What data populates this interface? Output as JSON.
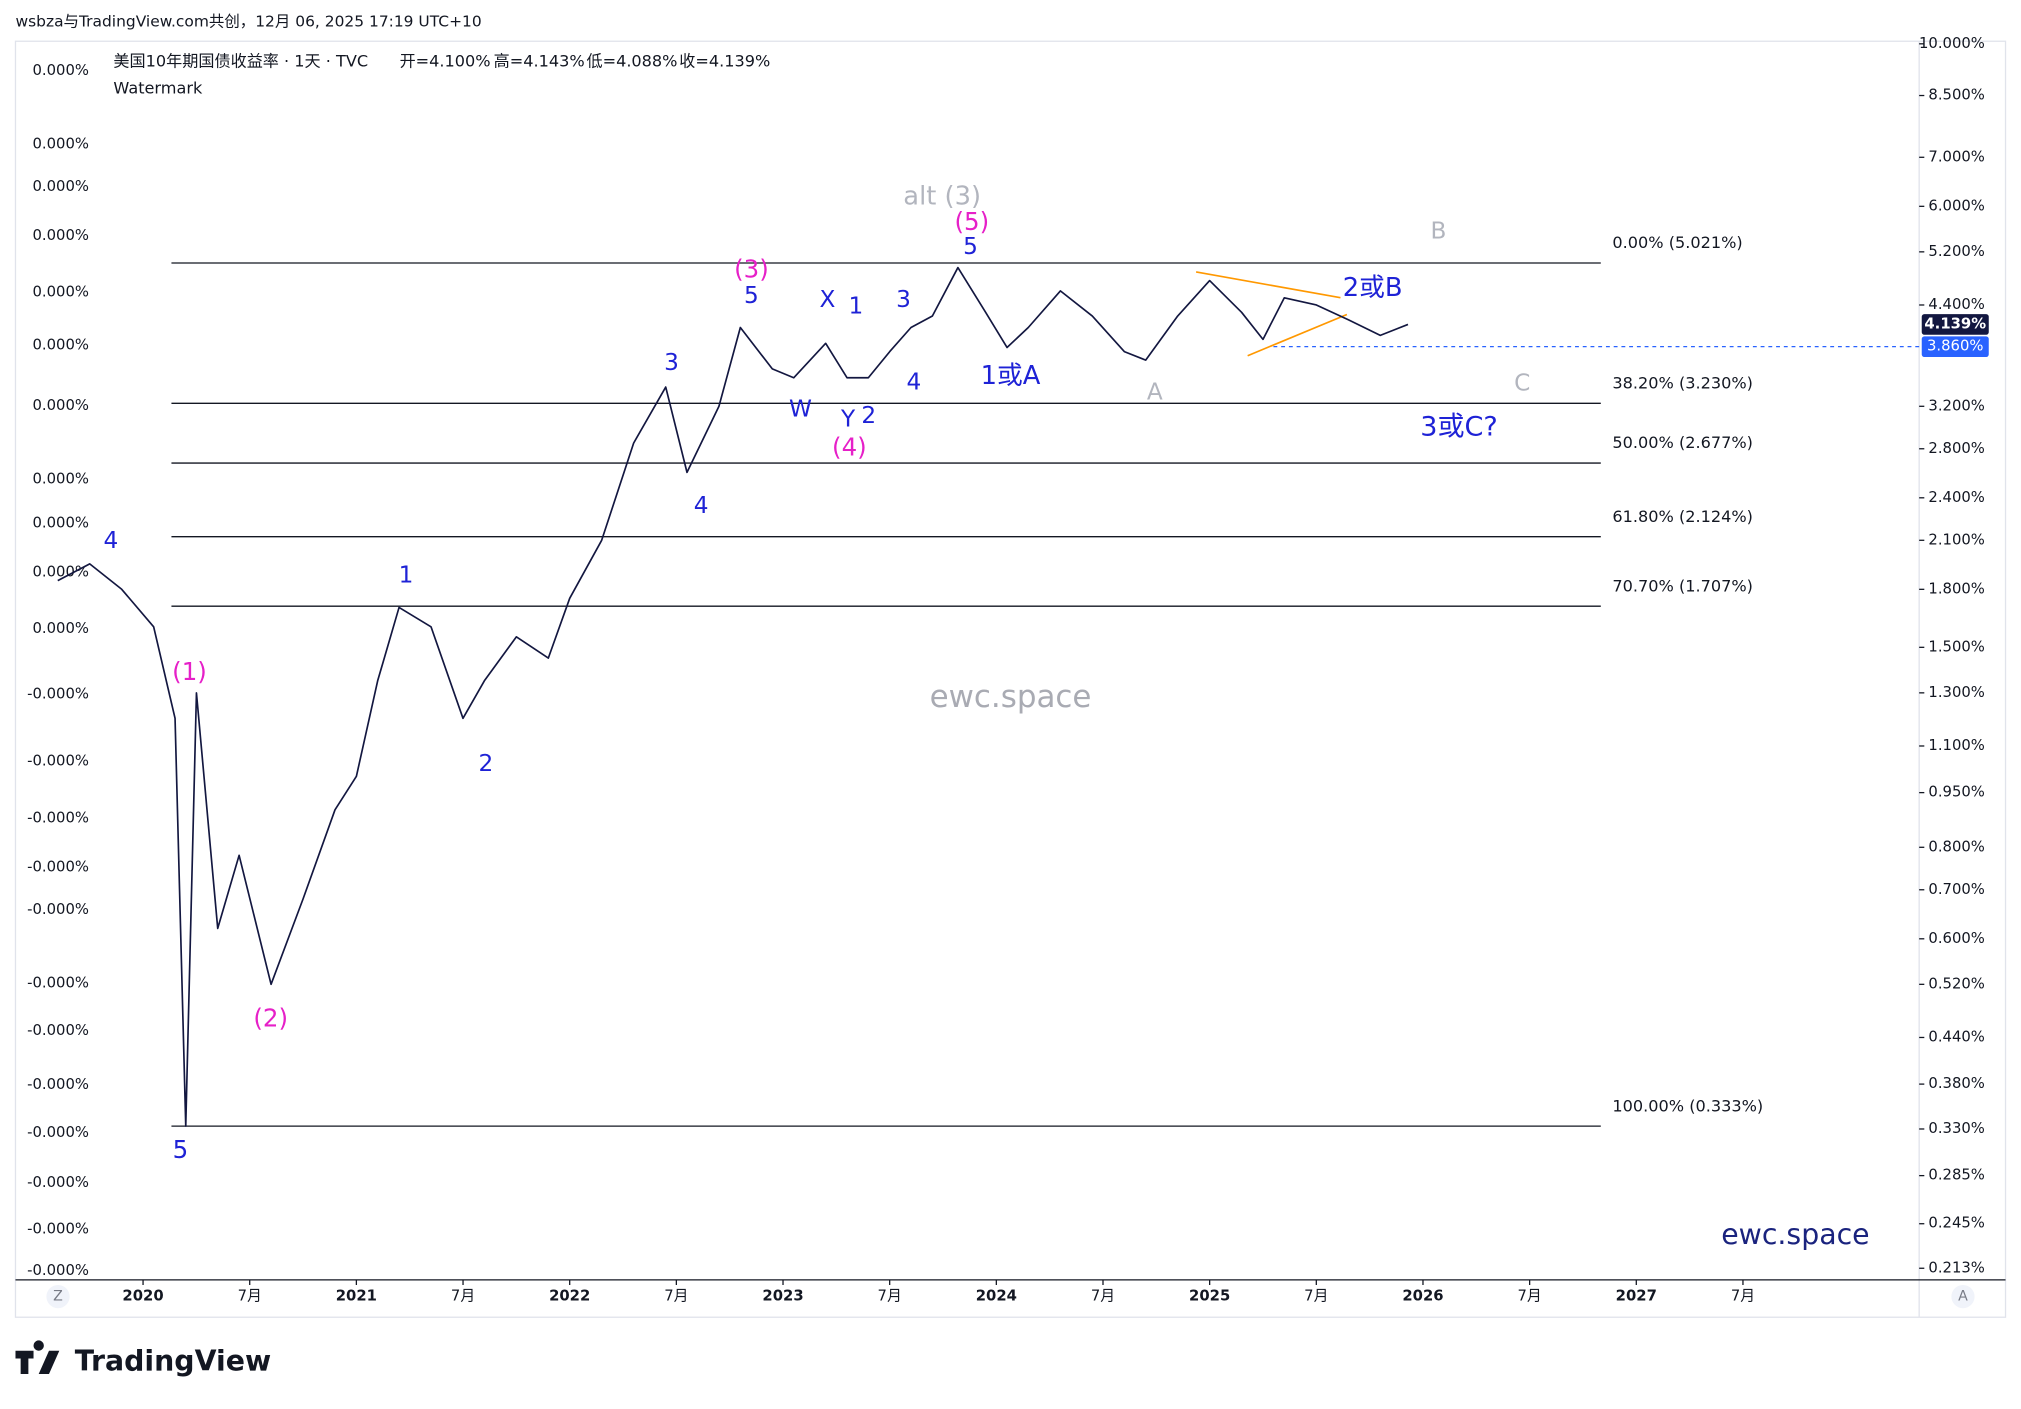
{
  "header": {
    "credit": "wsbza与TradingView.com共创，12月 06, 2025 17:19 UTC+10",
    "symbol": "美国10年期国债收益率 · 1天 · TVC",
    "open": "开=4.100%",
    "high": "高=4.143%",
    "low": "低=4.088%",
    "close": "收=4.139%",
    "indicator": "Watermark"
  },
  "chart_data": {
    "type": "line",
    "log_scale": true,
    "color": "#131740",
    "x": [
      2019.6,
      2019.75,
      2019.9,
      2020.05,
      2020.15,
      2020.2,
      2020.25,
      2020.35,
      2020.45,
      2020.6,
      2020.75,
      2020.9,
      2021.0,
      2021.1,
      2021.2,
      2021.35,
      2021.5,
      2021.6,
      2021.75,
      2021.9,
      2022.0,
      2022.15,
      2022.3,
      2022.45,
      2022.55,
      2022.7,
      2022.8,
      2022.95,
      2023.05,
      2023.2,
      2023.3,
      2023.4,
      2023.5,
      2023.6,
      2023.7,
      2023.82,
      2023.95,
      2024.05,
      2024.15,
      2024.3,
      2024.45,
      2024.6,
      2024.7,
      2024.85,
      2025.0,
      2025.15,
      2025.25,
      2025.35,
      2025.5,
      2025.65,
      2025.8,
      2025.93
    ],
    "values": [
      1.85,
      1.95,
      1.8,
      1.6,
      1.2,
      0.333,
      1.3,
      0.62,
      0.78,
      0.52,
      0.68,
      0.9,
      1.0,
      1.35,
      1.7,
      1.6,
      1.2,
      1.35,
      1.55,
      1.45,
      1.75,
      2.1,
      2.85,
      3.4,
      2.6,
      3.2,
      4.1,
      3.6,
      3.5,
      3.9,
      3.5,
      3.5,
      3.8,
      4.1,
      4.25,
      4.95,
      4.3,
      3.85,
      4.1,
      4.6,
      4.25,
      3.8,
      3.7,
      4.25,
      4.75,
      4.3,
      3.95,
      4.5,
      4.4,
      4.2,
      4.0,
      4.139
    ],
    "xlim": [
      2019.402,
      2028.326
    ],
    "xticks": [
      {
        "value": 2020,
        "label": "2020"
      },
      {
        "value": 2020.5,
        "label": "7月"
      },
      {
        "value": 2021,
        "label": "2021"
      },
      {
        "value": 2021.5,
        "label": "7月"
      },
      {
        "value": 2022,
        "label": "2022"
      },
      {
        "value": 2022.5,
        "label": "7月"
      },
      {
        "value": 2023,
        "label": "2023"
      },
      {
        "value": 2023.5,
        "label": "7月"
      },
      {
        "value": 2024,
        "label": "2024"
      },
      {
        "value": 2024.5,
        "label": "7月"
      },
      {
        "value": 2025,
        "label": "2025"
      },
      {
        "value": 2025.5,
        "label": "7月"
      },
      {
        "value": 2026,
        "label": "2026"
      },
      {
        "value": 2026.5,
        "label": "7月"
      },
      {
        "value": 2027,
        "label": "2027"
      },
      {
        "value": 2027.5,
        "label": "7月"
      }
    ],
    "ylim": [
      0.213,
      10
    ],
    "yticks": [
      {
        "value": 10,
        "label": "10.000%"
      },
      {
        "value": 8.5,
        "label": "8.500%"
      },
      {
        "value": 7,
        "label": "7.000%"
      },
      {
        "value": 6,
        "label": "6.000%"
      },
      {
        "value": 5.2,
        "label": "5.200%"
      },
      {
        "value": 4.4,
        "label": "4.400%"
      },
      {
        "value": 3.2,
        "label": "3.200%"
      },
      {
        "value": 2.8,
        "label": "2.800%"
      },
      {
        "value": 2.4,
        "label": "2.400%"
      },
      {
        "value": 2.1,
        "label": "2.100%"
      },
      {
        "value": 1.8,
        "label": "1.800%"
      },
      {
        "value": 1.5,
        "label": "1.500%"
      },
      {
        "value": 1.3,
        "label": "1.300%"
      },
      {
        "value": 1.1,
        "label": "1.100%"
      },
      {
        "value": 0.95,
        "label": "0.950%"
      },
      {
        "value": 0.8,
        "label": "0.800%"
      },
      {
        "value": 0.7,
        "label": "0.700%"
      },
      {
        "value": 0.6,
        "label": "0.600%"
      },
      {
        "value": 0.52,
        "label": "0.520%"
      },
      {
        "value": 0.44,
        "label": "0.440%"
      },
      {
        "value": 0.38,
        "label": "0.380%"
      },
      {
        "value": 0.33,
        "label": "0.330%"
      },
      {
        "value": 0.285,
        "label": "0.285%"
      },
      {
        "value": 0.245,
        "label": "0.245%"
      },
      {
        "value": 0.213,
        "label": "0.213%"
      }
    ],
    "left_axis_labels": [
      "0.000%",
      "0.000%",
      "0.000%",
      "0.000%",
      "0.000%",
      "0.000%",
      "0.000%",
      "0.000%",
      "0.000%",
      "0.000%",
      "0.000%",
      "-0.000%",
      "-0.000%",
      "-0.000%",
      "-0.000%",
      "-0.000%",
      "-0.000%",
      "-0.000%",
      "-0.000%",
      "-0.000%",
      "-0.000%",
      "-0.000%",
      "-0.000%"
    ],
    "fib_levels": [
      {
        "value": 5.021,
        "label": "0.00% (5.021%)"
      },
      {
        "value": 3.23,
        "label": "38.20% (3.230%)"
      },
      {
        "value": 2.677,
        "label": "50.00% (2.677%)"
      },
      {
        "value": 2.124,
        "label": "61.80% (2.124%)"
      },
      {
        "value": 1.707,
        "label": "70.70% (1.707%)"
      },
      {
        "value": 0.333,
        "label": "100.00% (0.333%)"
      }
    ],
    "last_price": {
      "value": 4.139,
      "label": "4.139%"
    },
    "marker_price": {
      "value": 3.86,
      "label": "3.860%"
    },
    "annotations": [
      {
        "text": "4",
        "color": "#1e22d6"
      },
      {
        "text": "(1)",
        "color": "#e620c8"
      },
      {
        "text": "5",
        "color": "#1e22d6"
      },
      {
        "text": "(2)",
        "color": "#e620c8"
      },
      {
        "text": "1",
        "color": "#1e22d6"
      },
      {
        "text": "2",
        "color": "#1e22d6"
      },
      {
        "text": "3",
        "color": "#1e22d6"
      },
      {
        "text": "4",
        "color": "#1e22d6"
      },
      {
        "text": "(3)",
        "color": "#e620c8"
      },
      {
        "text": "5",
        "color": "#1e22d6"
      },
      {
        "text": "W",
        "color": "#1e22d6"
      },
      {
        "text": "X",
        "color": "#1e22d6"
      },
      {
        "text": "Y",
        "color": "#1e22d6"
      },
      {
        "text": "2",
        "color": "#1e22d6"
      },
      {
        "text": "(4)",
        "color": "#e620c8"
      },
      {
        "text": "1",
        "color": "#1e22d6"
      },
      {
        "text": "3",
        "color": "#1e22d6"
      },
      {
        "text": "4",
        "color": "#1e22d6"
      },
      {
        "text": "alt (3)",
        "color": "#b2b5be"
      },
      {
        "text": "(5)",
        "color": "#e620c8"
      },
      {
        "text": "5",
        "color": "#1e22d6"
      },
      {
        "text": "1或A",
        "color": "#1e22d6"
      },
      {
        "text": "A",
        "color": "#b2b5be"
      },
      {
        "text": "2或B",
        "color": "#1e22d6"
      },
      {
        "text": "B",
        "color": "#b2b5be"
      },
      {
        "text": "C",
        "color": "#b2b5be"
      },
      {
        "text": "3或C?",
        "color": "#1e22d6"
      }
    ],
    "watermarks": [
      "ewc.space",
      "ewc.space"
    ],
    "axis_buttons": [
      "Z",
      "A"
    ]
  },
  "footer": {
    "brand": "TradingView"
  }
}
